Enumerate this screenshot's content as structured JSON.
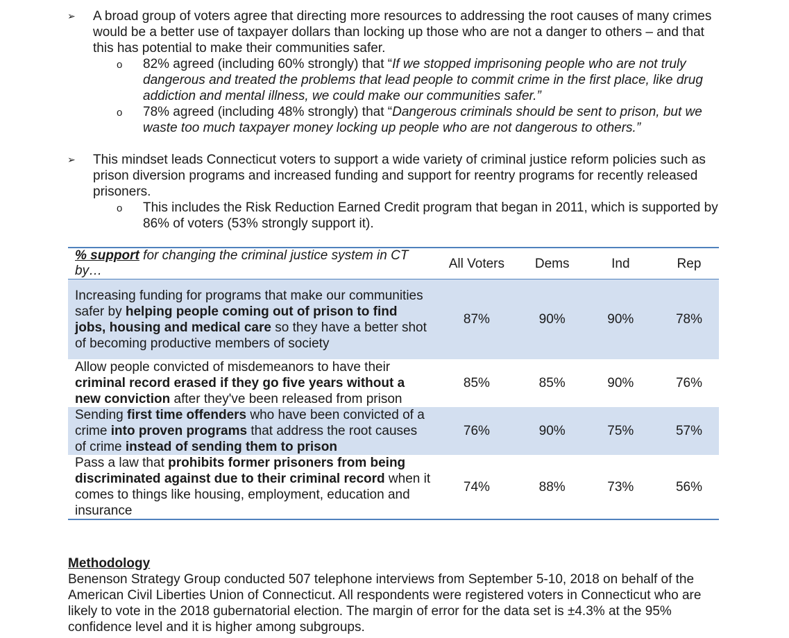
{
  "bullets": [
    {
      "marker": "➢",
      "text": "A broad group of voters agree that directing more resources to addressing the root causes of many crimes would be a better use of taxpayer dollars than locking up those who are not a danger to others – and that this has potential to make their communities safer.",
      "subs": [
        {
          "marker": "o",
          "prefix": "82% agreed (including 60% strongly) that “",
          "quote": "If we stopped imprisoning people who are not truly dangerous and treated the problems that lead people to commit crime in the first place, like drug addiction and mental illness, we could make our communities safer.”"
        },
        {
          "marker": "o",
          "prefix": "78% agreed (including 48% strongly) that “",
          "quote": "Dangerous criminals should be sent to prison, but we waste too much taxpayer money locking up people who are not dangerous to others.”"
        }
      ]
    },
    {
      "marker": "➢",
      "text": "This mindset leads Connecticut voters to support a wide variety of criminal justice reform policies such as prison diversion programs and increased funding and support for reentry programs for recently released prisoners.",
      "subs": [
        {
          "marker": "o",
          "text": "This includes the Risk Reduction Earned Credit program that began in 2011, which is supported by 86% of voters (53% strongly support it)."
        }
      ]
    }
  ],
  "table": {
    "header": {
      "label_strong": "% support",
      "label_rest": " for changing the criminal justice system in CT by…",
      "cols": [
        "All Voters",
        "Dems",
        "Ind",
        "Rep"
      ]
    },
    "rows": [
      {
        "parts": [
          {
            "t": "Increasing funding for programs that make our communities safer by ",
            "b": false
          },
          {
            "t": "helping people coming out of prison to find jobs, housing and medical care",
            "b": true
          },
          {
            "t": " so they have a better shot of becoming productive members of society",
            "b": false
          }
        ],
        "values": [
          "87%",
          "90%",
          "90%",
          "78%"
        ]
      },
      {
        "parts": [
          {
            "t": "Allow people convicted of misdemeanors to have their ",
            "b": false
          },
          {
            "t": "criminal record erased if they go five years without a new conviction",
            "b": true
          },
          {
            "t": " after they've been released from prison",
            "b": false
          }
        ],
        "values": [
          "85%",
          "85%",
          "90%",
          "76%"
        ]
      },
      {
        "parts": [
          {
            "t": "Sending ",
            "b": false
          },
          {
            "t": "first time offenders",
            "b": true
          },
          {
            "t": " who have been convicted of a crime ",
            "b": false
          },
          {
            "t": "into proven programs",
            "b": true
          },
          {
            "t": " that address the root causes of crime ",
            "b": false
          },
          {
            "t": "instead of sending them to prison",
            "b": true
          }
        ],
        "values": [
          "76%",
          "90%",
          "75%",
          "57%"
        ]
      },
      {
        "parts": [
          {
            "t": "Pass a law that ",
            "b": false
          },
          {
            "t": "prohibits former prisoners from being discriminated against due to their criminal record",
            "b": true
          },
          {
            "t": " when it comes to things like housing, employment, education and insurance",
            "b": false
          }
        ],
        "values": [
          "74%",
          "88%",
          "73%",
          "56%"
        ]
      }
    ]
  },
  "methodology": {
    "heading": "Methodology",
    "text": "Benenson Strategy Group conducted 507 telephone interviews from September 5-10, 2018 on behalf of the American Civil Liberties Union of Connecticut. All respondents were registered voters in Connecticut who are likely to vote in the 2018 gubernatorial election. The margin of error for the data set is ±4.3% at the 95% confidence level and it is higher among subgroups."
  },
  "colors": {
    "row_shade": "#d3dff0",
    "rule": "#4f81bd"
  }
}
